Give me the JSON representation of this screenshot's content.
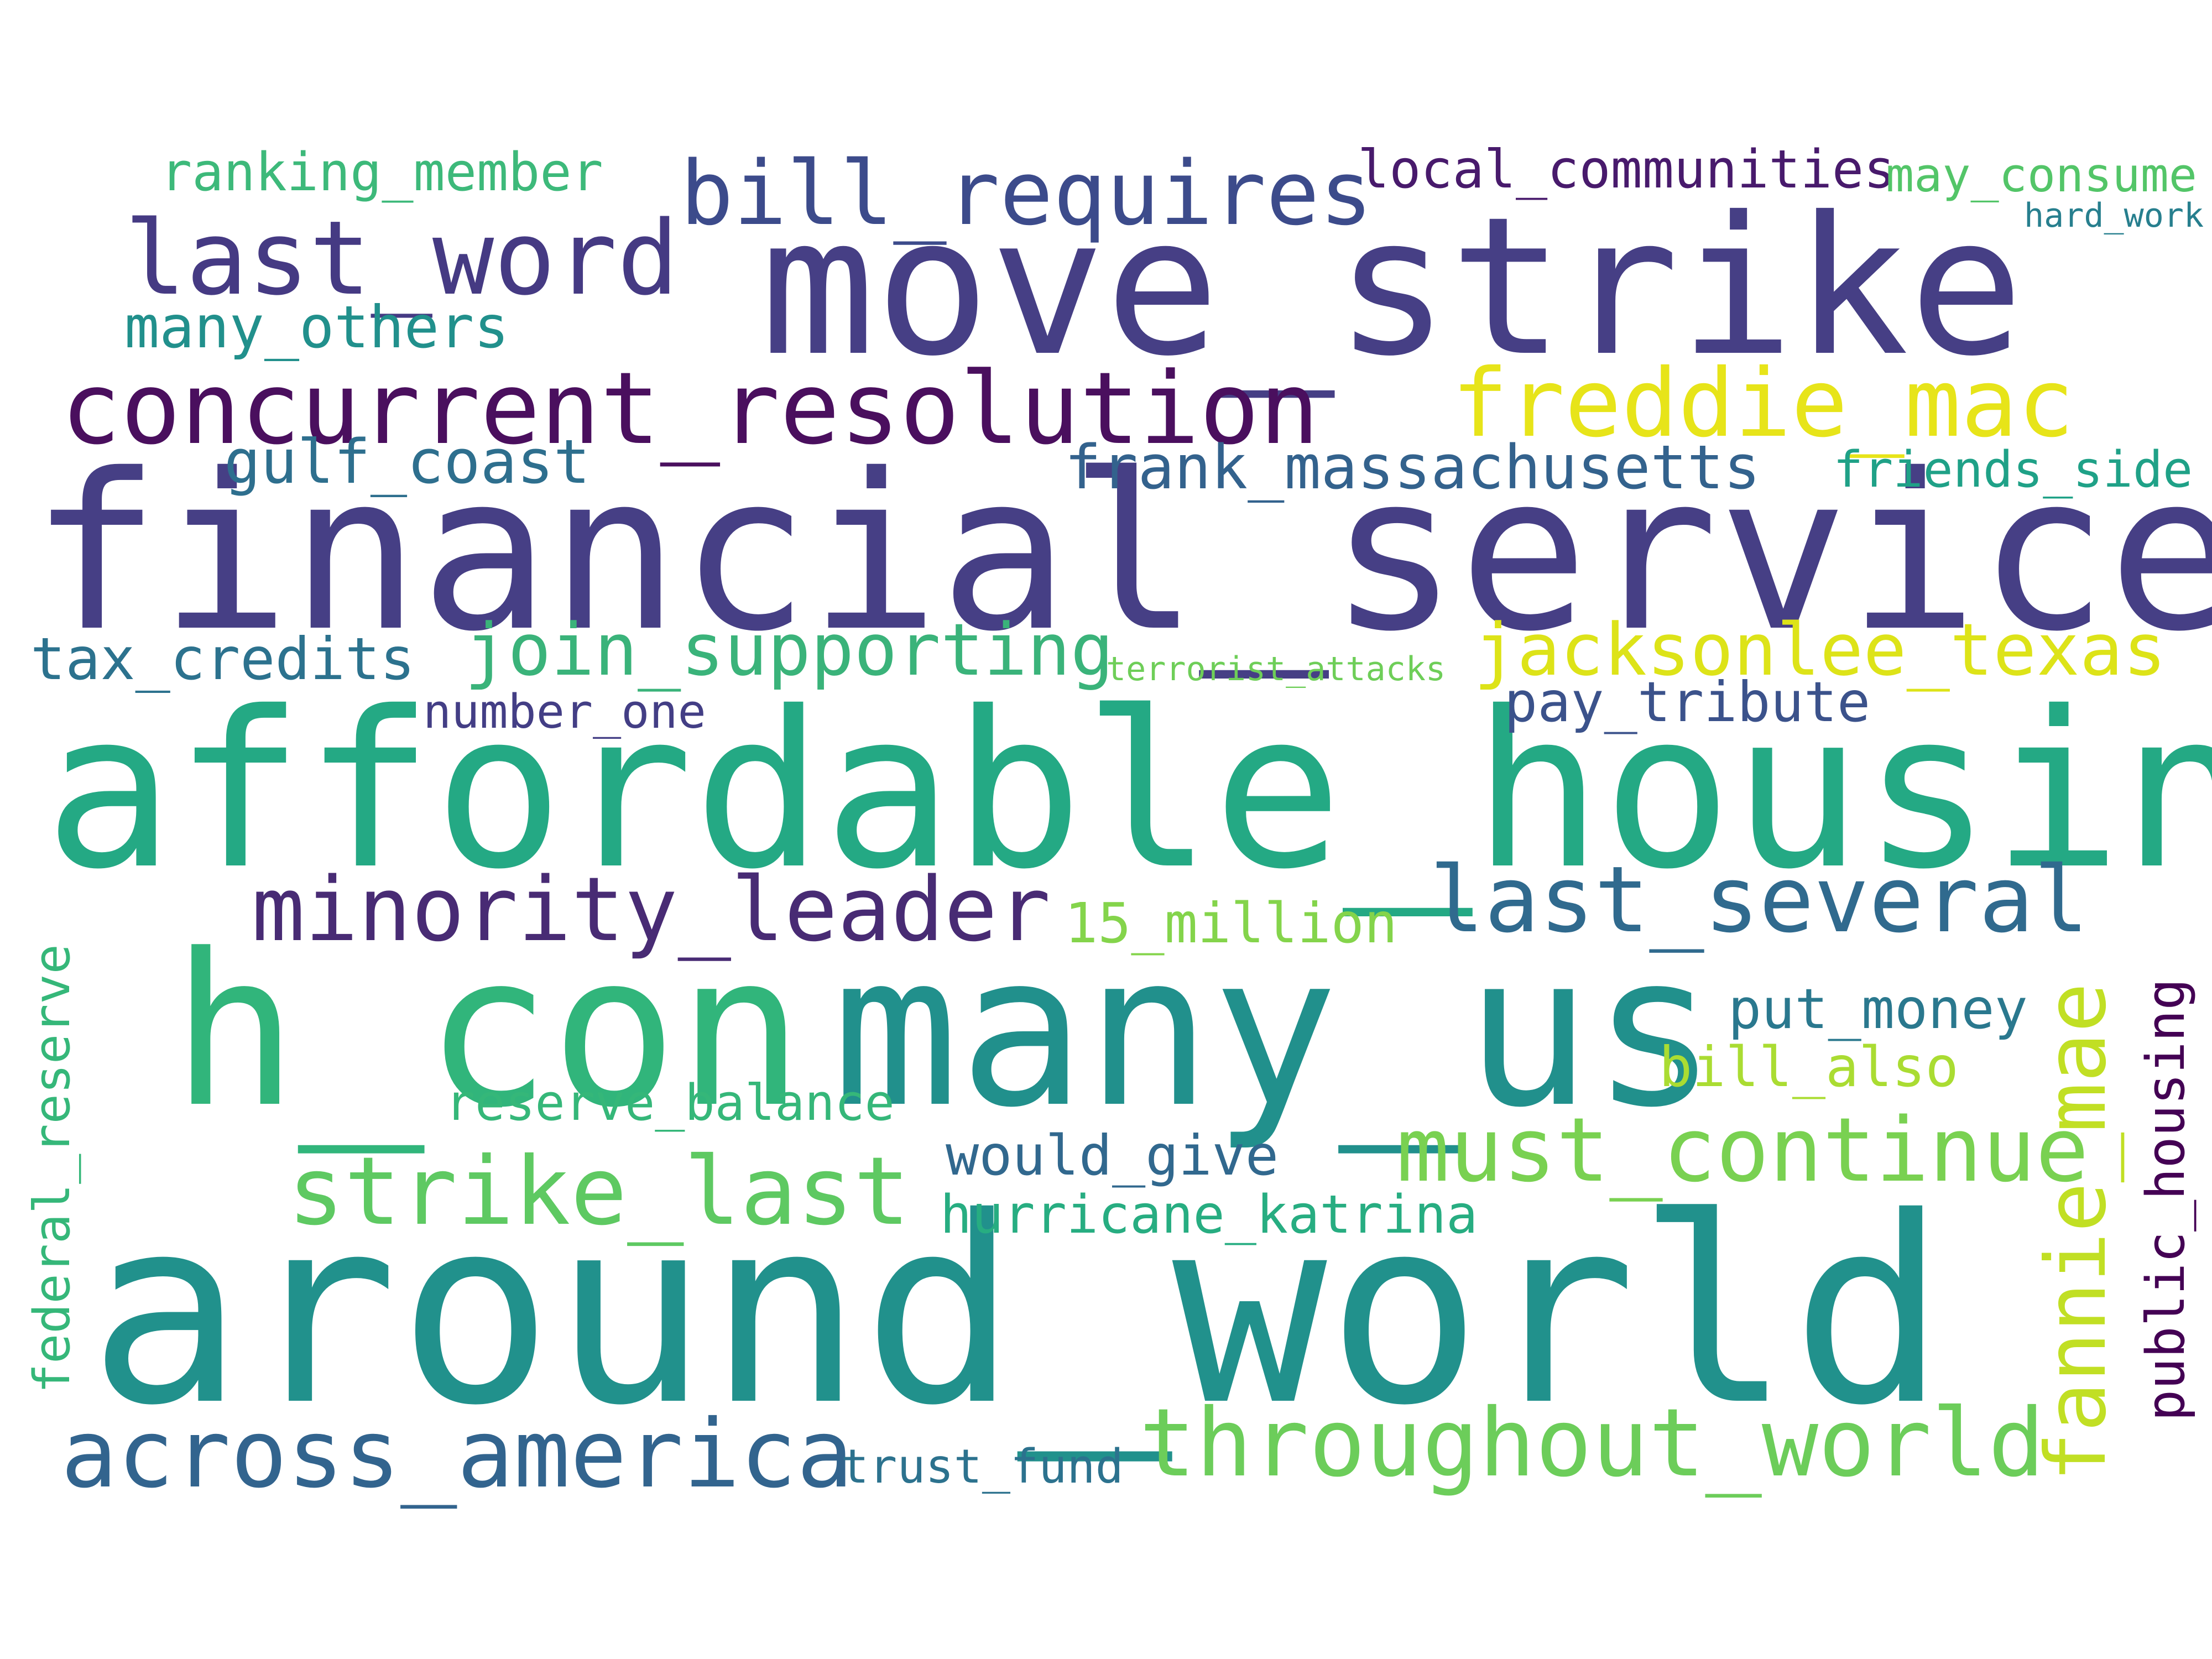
{
  "words": [
    {
      "text": "move_strike",
      "color": "#463f85"
    },
    {
      "text": "financial_services",
      "color": "#463f85"
    },
    {
      "text": "affordable_housing",
      "color": "#24a984"
    },
    {
      "text": "around_world",
      "color": "#21918c"
    },
    {
      "text": "h_con",
      "color": "#31b57b"
    },
    {
      "text": "many_us",
      "color": "#21908c"
    },
    {
      "text": "concurrent_resolution",
      "color": "#4a0f5e"
    },
    {
      "text": "last_word",
      "color": "#453a83"
    },
    {
      "text": "bill_requires",
      "color": "#3c4b8b"
    },
    {
      "text": "freddie_mac",
      "color": "#e7e419"
    },
    {
      "text": "minority_leader",
      "color": "#482b74"
    },
    {
      "text": "last_several",
      "color": "#306a8e"
    },
    {
      "text": "strike_last",
      "color": "#5ec962"
    },
    {
      "text": "must_continue",
      "color": "#79d151"
    },
    {
      "text": "across_america",
      "color": "#32648e"
    },
    {
      "text": "throughout_world",
      "color": "#6ccd5a"
    },
    {
      "text": "fannie_mae",
      "color": "#c1df24"
    },
    {
      "text": "jacksonlee_texas",
      "color": "#dde318"
    },
    {
      "text": "join_supporting",
      "color": "#3ab37a"
    },
    {
      "text": "frank_massachusetts",
      "color": "#33628d"
    },
    {
      "text": "gulf_coast",
      "color": "#2e6f8e"
    },
    {
      "text": "tax_credits",
      "color": "#2c728e"
    },
    {
      "text": "ranking_member",
      "color": "#3db97a"
    },
    {
      "text": "local_communities",
      "color": "#481a6c"
    },
    {
      "text": "may_consume",
      "color": "#53c568"
    },
    {
      "text": "hard_work",
      "color": "#277f8e"
    },
    {
      "text": "many_others",
      "color": "#21908c"
    },
    {
      "text": "friends_side",
      "color": "#1fa187"
    },
    {
      "text": "pay_tribute",
      "color": "#3b528b"
    },
    {
      "text": "number_one",
      "color": "#433e85"
    },
    {
      "text": "terrorist_attacks",
      "color": "#6ece58"
    },
    {
      "text": "15_million",
      "color": "#84d44b"
    },
    {
      "text": "put_money",
      "color": "#2a788e"
    },
    {
      "text": "bill_also",
      "color": "#aadc32"
    },
    {
      "text": "reserve_balance",
      "color": "#35b779"
    },
    {
      "text": "would_give",
      "color": "#31688e"
    },
    {
      "text": "hurricane_katrina",
      "color": "#27ad81"
    },
    {
      "text": "trust_fund",
      "color": "#2c728e"
    },
    {
      "text": "federal_reserve",
      "color": "#35b779"
    },
    {
      "text": "public_housing",
      "color": "#440154"
    }
  ]
}
